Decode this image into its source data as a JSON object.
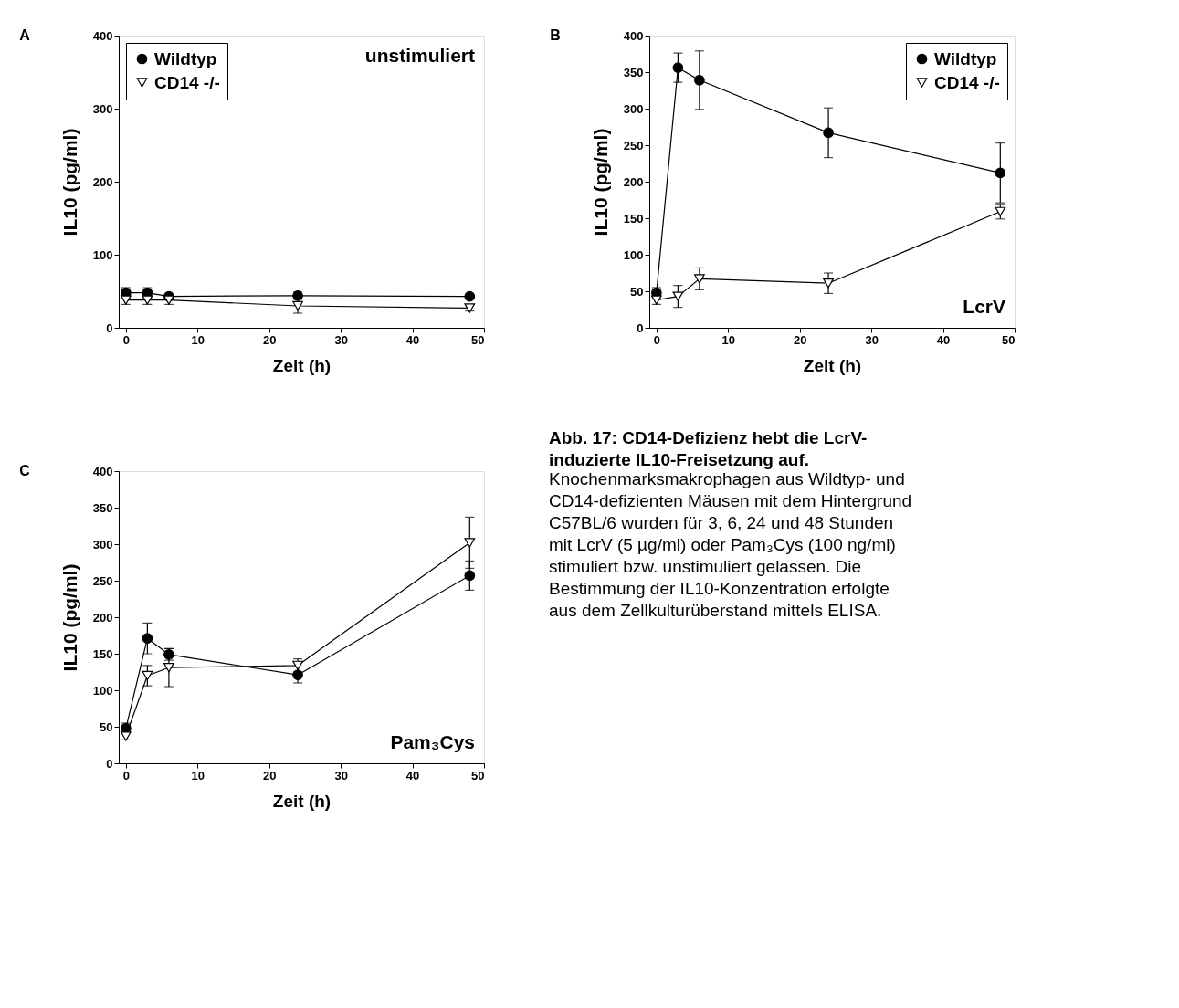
{
  "chart_data": [
    {
      "type": "line",
      "title": "A",
      "xlabel": "Zeit (h)",
      "ylabel": "IL10 (pg/ml)",
      "xlim": [
        -1,
        50
      ],
      "xticks": [
        0,
        10,
        20,
        30,
        40,
        50
      ],
      "ylim": [
        0,
        400
      ],
      "yticks": [
        0,
        100,
        200,
        300,
        400
      ],
      "grid": false,
      "legend": "top left",
      "annotations": [
        "unstimuliert"
      ],
      "x": [
        0,
        3,
        6,
        24,
        48
      ],
      "series": [
        {
          "name": "Wildtyp",
          "color": "#000000",
          "marker": "circle",
          "values": [
            48,
            48,
            43,
            44,
            43
          ],
          "errors": [
            7,
            7,
            2,
            5,
            2
          ]
        },
        {
          "name": "CD14 -/-",
          "color": "#000000",
          "marker": "triangle",
          "values": [
            38,
            38,
            38,
            30,
            27
          ],
          "errors": [
            6,
            6,
            6,
            10,
            4
          ]
        }
      ]
    },
    {
      "type": "line",
      "title": "B",
      "xlabel": "Zeit (h)",
      "ylabel": "IL10 (pg/ml)",
      "xlim": [
        -1,
        50
      ],
      "xticks": [
        0,
        10,
        20,
        30,
        40,
        50
      ],
      "ylim": [
        0,
        400
      ],
      "yticks": [
        0,
        50,
        100,
        150,
        200,
        250,
        300,
        350,
        400
      ],
      "grid": false,
      "legend": "top right",
      "annotations": [
        "LcrV"
      ],
      "x": [
        0,
        3,
        6,
        24,
        48
      ],
      "series": [
        {
          "name": "Wildtyp",
          "color": "#000000",
          "marker": "circle",
          "values": [
            48,
            356,
            339,
            267,
            212
          ],
          "errors": [
            7,
            20,
            40,
            34,
            41
          ]
        },
        {
          "name": "CD14 -/-",
          "color": "#000000",
          "marker": "triangle",
          "values": [
            38,
            43,
            67,
            61,
            159
          ],
          "errors": [
            6,
            15,
            15,
            14,
            10
          ]
        }
      ]
    },
    {
      "type": "line",
      "title": "C",
      "xlabel": "Zeit (h)",
      "ylabel": "IL10 (pg/ml)",
      "xlim": [
        -1,
        50
      ],
      "xticks": [
        0,
        10,
        20,
        30,
        40,
        50
      ],
      "ylim": [
        0,
        400
      ],
      "yticks": [
        0,
        50,
        100,
        150,
        200,
        250,
        300,
        350,
        400
      ],
      "grid": false,
      "legend": "top left",
      "annotations": [
        "Pam₃Cys"
      ],
      "x": [
        0,
        3,
        6,
        24,
        48
      ],
      "series": [
        {
          "name": "Wildtyp",
          "color": "#000000",
          "marker": "circle",
          "values": [
            48,
            171,
            149,
            121,
            257
          ],
          "errors": [
            7,
            21,
            8,
            11,
            20
          ]
        },
        {
          "name": "CD14 -/-",
          "color": "#000000",
          "marker": "triangle",
          "values": [
            37,
            120,
            131,
            134,
            302
          ],
          "errors": [
            5,
            14,
            26,
            9,
            35
          ]
        }
      ]
    },
    {
      "type": "other",
      "title": "Abb. 17: CD14-Defizienz hebt die LcrV-induzierte IL10-Freisetzung auf.",
      "annotations": [
        "Knochenmarksmakrophagen aus Wildtyp- und CD14-defizienten Mäusen mit dem Hintergrund C57BL/6 wurden für 3, 6, 24 und 48 Stunden mit LcrV (5 µg/ml) oder Pam₃Cys (100 ng/ml) stimuliert bzw. unstimuliert gelassen. Die Bestimmung der IL10-Konzentration erfolgte aus dem Zellkulturüberstand mittels ELISA."
      ]
    }
  ]
}
